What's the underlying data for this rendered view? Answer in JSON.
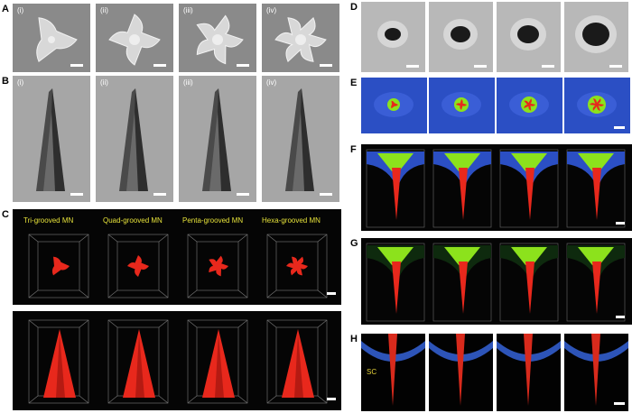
{
  "panels": {
    "A": {
      "letter": "A",
      "subpanels": [
        "(i)",
        "(ii)",
        "(iii)",
        "(iv)"
      ]
    },
    "B": {
      "letter": "B",
      "subpanels": [
        "(i)",
        "(ii)",
        "(iii)",
        "(iv)"
      ]
    },
    "C": {
      "letter": "C",
      "captions": [
        "Tri-grooved MN",
        "Quad-grooved MN",
        "Penta-grooved MN",
        "Hexa-grooved MN"
      ]
    },
    "D": {
      "letter": "D"
    },
    "E": {
      "letter": "E"
    },
    "F": {
      "letter": "F"
    },
    "G": {
      "letter": "G"
    },
    "H": {
      "letter": "H",
      "sc_label": "SC"
    }
  },
  "colors": {
    "sem_bg": "#8a8a8a",
    "confocal_bg": "#050505",
    "microneedle_red": "#e8281c",
    "caption_yellow": "#e6e23a",
    "skin_blue": "#2b4fc4",
    "dye_green": "#8ce21c"
  }
}
